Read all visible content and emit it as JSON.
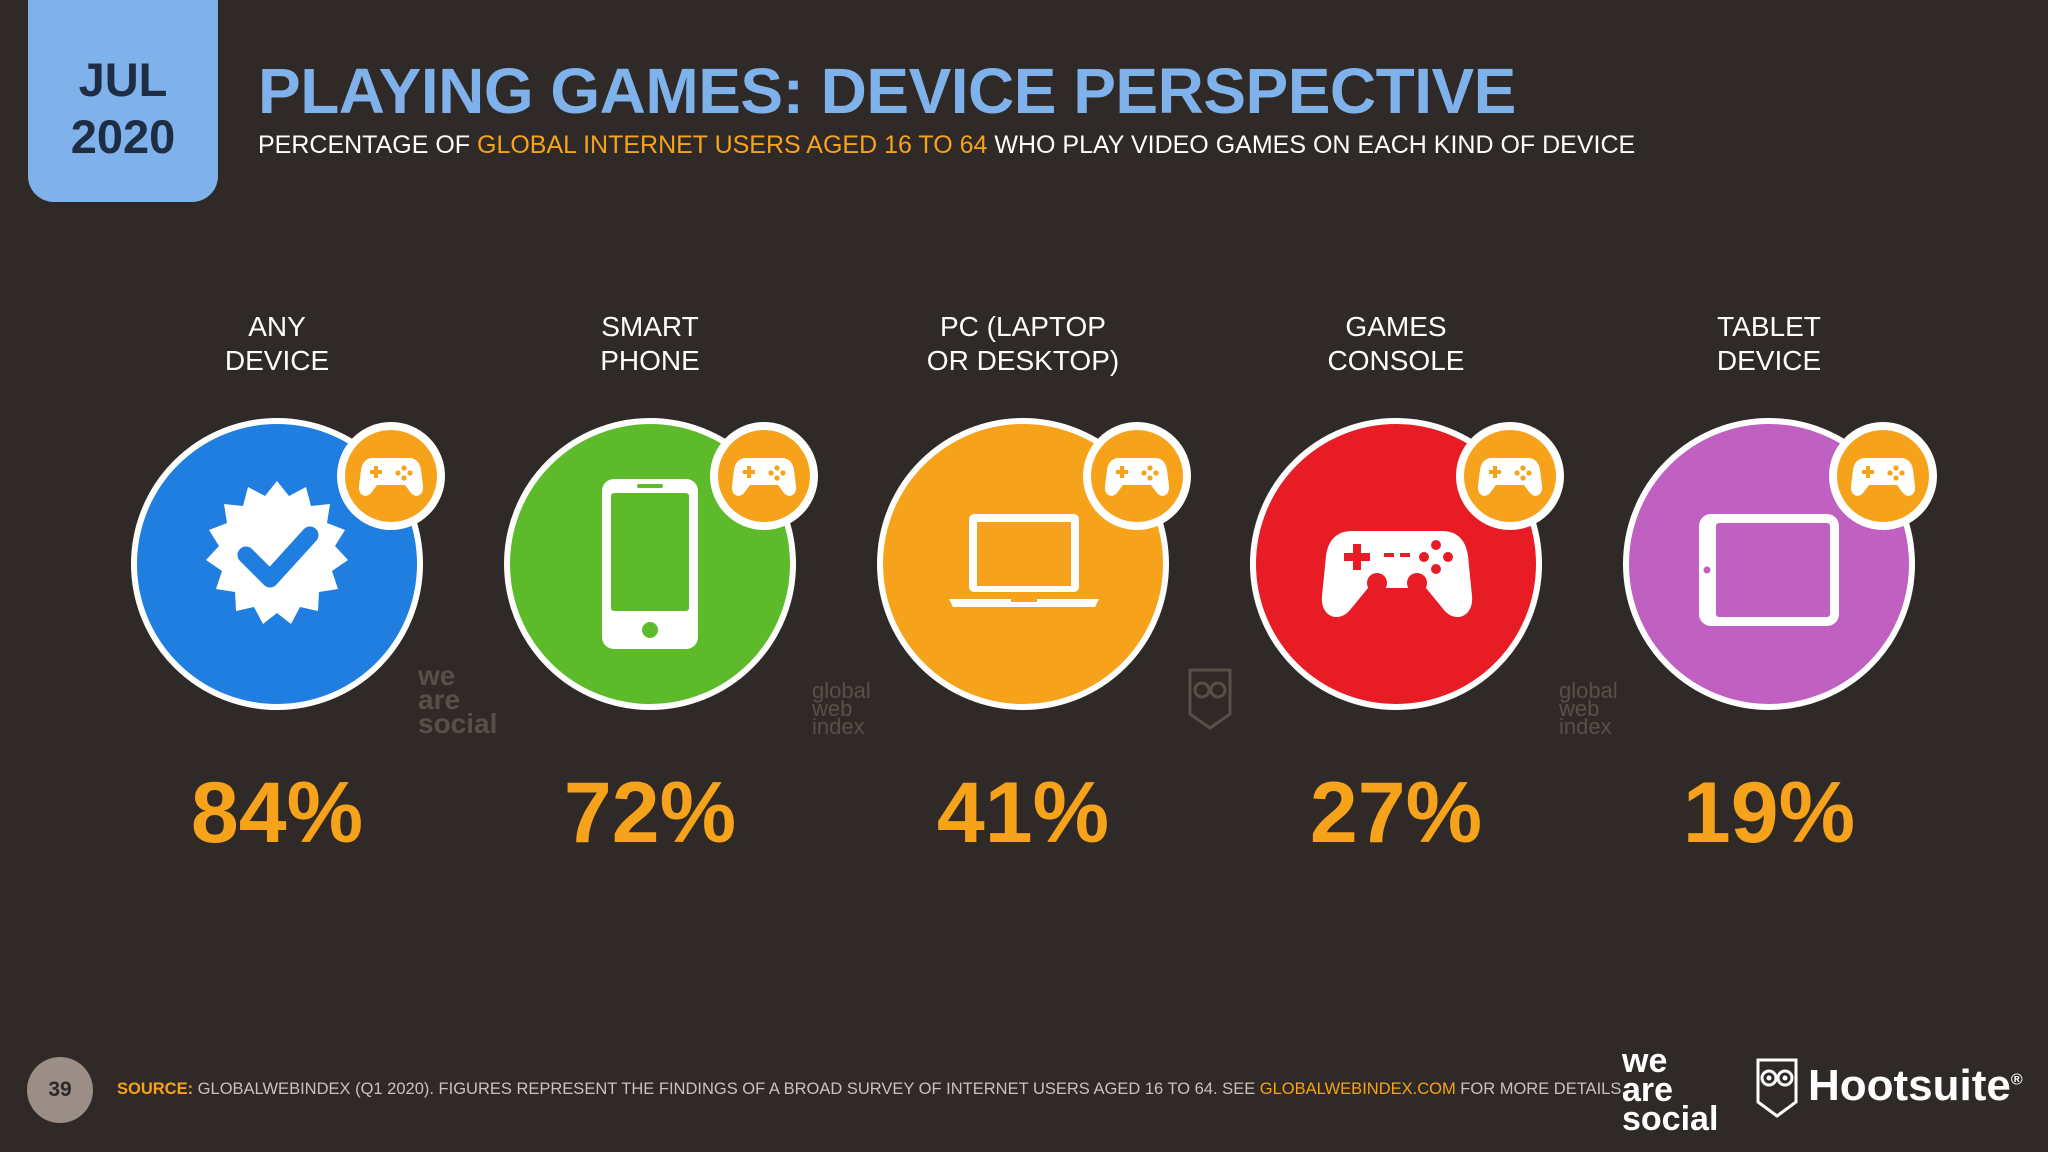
{
  "header": {
    "month": "JUL",
    "year": "2020",
    "title": "PLAYING GAMES: DEVICE PERSPECTIVE",
    "subtitle_pre": "PERCENTAGE OF ",
    "subtitle_highlight": "GLOBAL INTERNET USERS AGED 16 TO 64",
    "subtitle_post": " WHO PLAY VIDEO GAMES ON EACH KIND OF DEVICE"
  },
  "colors": {
    "background": "#2f2a27",
    "accent_blue": "#7fb2ea",
    "accent_orange": "#f7a21b"
  },
  "chart_data": {
    "type": "bar",
    "title": "PLAYING GAMES: DEVICE PERSPECTIVE",
    "categories": [
      "ANY DEVICE",
      "SMART PHONE",
      "PC (LAPTOP OR DESKTOP)",
      "GAMES CONSOLE",
      "TABLET DEVICE"
    ],
    "values": [
      84,
      72,
      41,
      27,
      19
    ],
    "unit": "%"
  },
  "items": [
    {
      "label_line1": "ANY",
      "label_line2": "DEVICE",
      "value": "84%",
      "icon": "verified-check-icon",
      "color": "#1f7ee0"
    },
    {
      "label_line1": "SMART",
      "label_line2": "PHONE",
      "value": "72%",
      "icon": "smartphone-icon",
      "color": "#5dbb2b"
    },
    {
      "label_line1": "PC (LAPTOP",
      "label_line2": "OR DESKTOP)",
      "value": "41%",
      "icon": "laptop-icon",
      "color": "#f7a21b"
    },
    {
      "label_line1": "GAMES",
      "label_line2": "CONSOLE",
      "value": "27%",
      "icon": "game-controller-icon",
      "color": "#e81c24"
    },
    {
      "label_line1": "TABLET",
      "label_line2": "DEVICE",
      "value": "19%",
      "icon": "tablet-icon",
      "color": "#c060c0"
    }
  ],
  "watermarks": {
    "was_1": "we",
    "was_2": "are",
    "was_3": "social",
    "gwi_1": "global",
    "gwi_2": "web",
    "gwi_3": "index"
  },
  "footer": {
    "page_number": "39",
    "source_label": "SOURCE:",
    "source_text": " GLOBALWEBINDEX (Q1 2020). FIGURES REPRESENT THE FINDINGS OF A BROAD SURVEY OF INTERNET USERS AGED 16 TO 64. SEE ",
    "source_link": "GLOBALWEBINDEX.COM",
    "source_tail": " FOR MORE DETAILS."
  },
  "logos": {
    "was_1": "we",
    "was_2": "are",
    "was_3": "social",
    "hootsuite": "Hootsuite",
    "hootsuite_mark": "®"
  }
}
